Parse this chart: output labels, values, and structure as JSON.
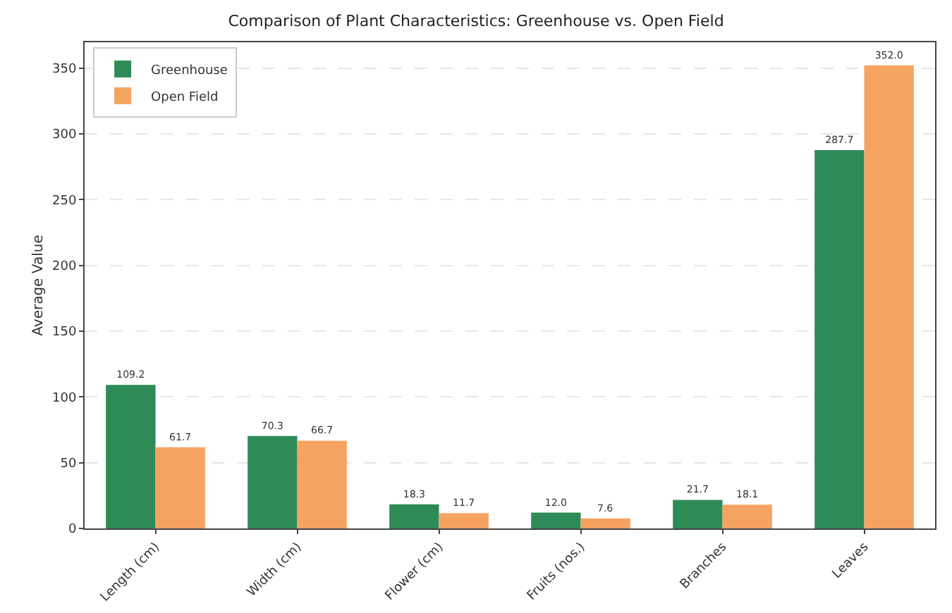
{
  "chart_data": {
    "type": "bar",
    "title": "Comparison of Plant Characteristics: Greenhouse vs. Open Field",
    "ylabel": "Average Value",
    "categories": [
      "Length (cm)",
      "Width (cm)",
      "Flower (cm)",
      "Fruits (nos.)",
      "Branches",
      "Leaves"
    ],
    "series": [
      {
        "name": "Greenhouse",
        "color": "#2e8b57",
        "values": [
          109.2,
          70.3,
          18.3,
          12,
          21.7,
          287.7
        ],
        "value_labels": [
          "109.2",
          "70.3",
          "18.3",
          "12.0",
          "21.7",
          "287.7"
        ]
      },
      {
        "name": "Open Field",
        "color": "#f4a460",
        "values": [
          61.7,
          66.7,
          11.7,
          7.6,
          18.1,
          352
        ],
        "value_labels": [
          "61.7",
          "66.7",
          "11.7",
          "7.6",
          "18.1",
          "352.0"
        ]
      }
    ],
    "ylim": [
      0,
      369.6
    ],
    "yticks": [
      0,
      50,
      100,
      150,
      200,
      250,
      300,
      350
    ],
    "grid": "y",
    "legend": "top left"
  }
}
